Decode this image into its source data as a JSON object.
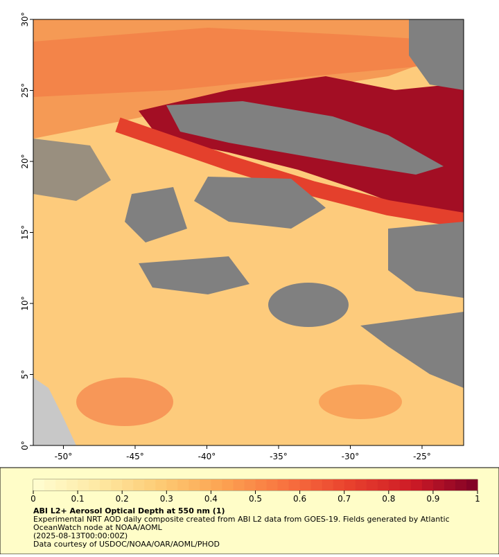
{
  "map": {
    "xlim": [
      -52.1,
      -22.1
    ],
    "ylim": [
      0,
      30
    ],
    "xticks": [
      {
        "value": -50,
        "label": "-50°"
      },
      {
        "value": -45,
        "label": "-45°"
      },
      {
        "value": -40,
        "label": "-40°"
      },
      {
        "value": -35,
        "label": "-35°"
      },
      {
        "value": -30,
        "label": "-30°"
      },
      {
        "value": -25,
        "label": "-25°"
      }
    ],
    "yticks": [
      {
        "value": 0,
        "label": "0°"
      },
      {
        "value": 5,
        "label": "5°"
      },
      {
        "value": 10,
        "label": "10°"
      },
      {
        "value": 15,
        "label": "15°"
      },
      {
        "value": 20,
        "label": "20°"
      },
      {
        "value": 25,
        "label": "25°"
      },
      {
        "value": 30,
        "label": "30°"
      }
    ]
  },
  "colorbar": {
    "lim": [
      0,
      1
    ],
    "ticks": [
      0,
      0.1,
      0.2,
      0.3,
      0.4,
      0.5,
      0.6,
      0.7,
      0.8,
      0.9,
      1
    ],
    "colors": [
      "#fffed2",
      "#fee9a4",
      "#fdcb74",
      "#fca251",
      "#f8713f",
      "#e8402d",
      "#cc1a26",
      "#7d0026"
    ]
  },
  "caption": {
    "title": "ABI L2+ Aerosol Optical Depth at 550 nm (1)",
    "description": "Experimental NRT AOD daily composite created from ABI L2 data from GOES-19. Fields generated by Atlantic OceanWatch node at NOAA/AOML",
    "time": "(2025-08-13T00:00:00Z)",
    "credit": "Data courtesy of USDOC/NOAA/OAR/AOML/PHOD"
  }
}
